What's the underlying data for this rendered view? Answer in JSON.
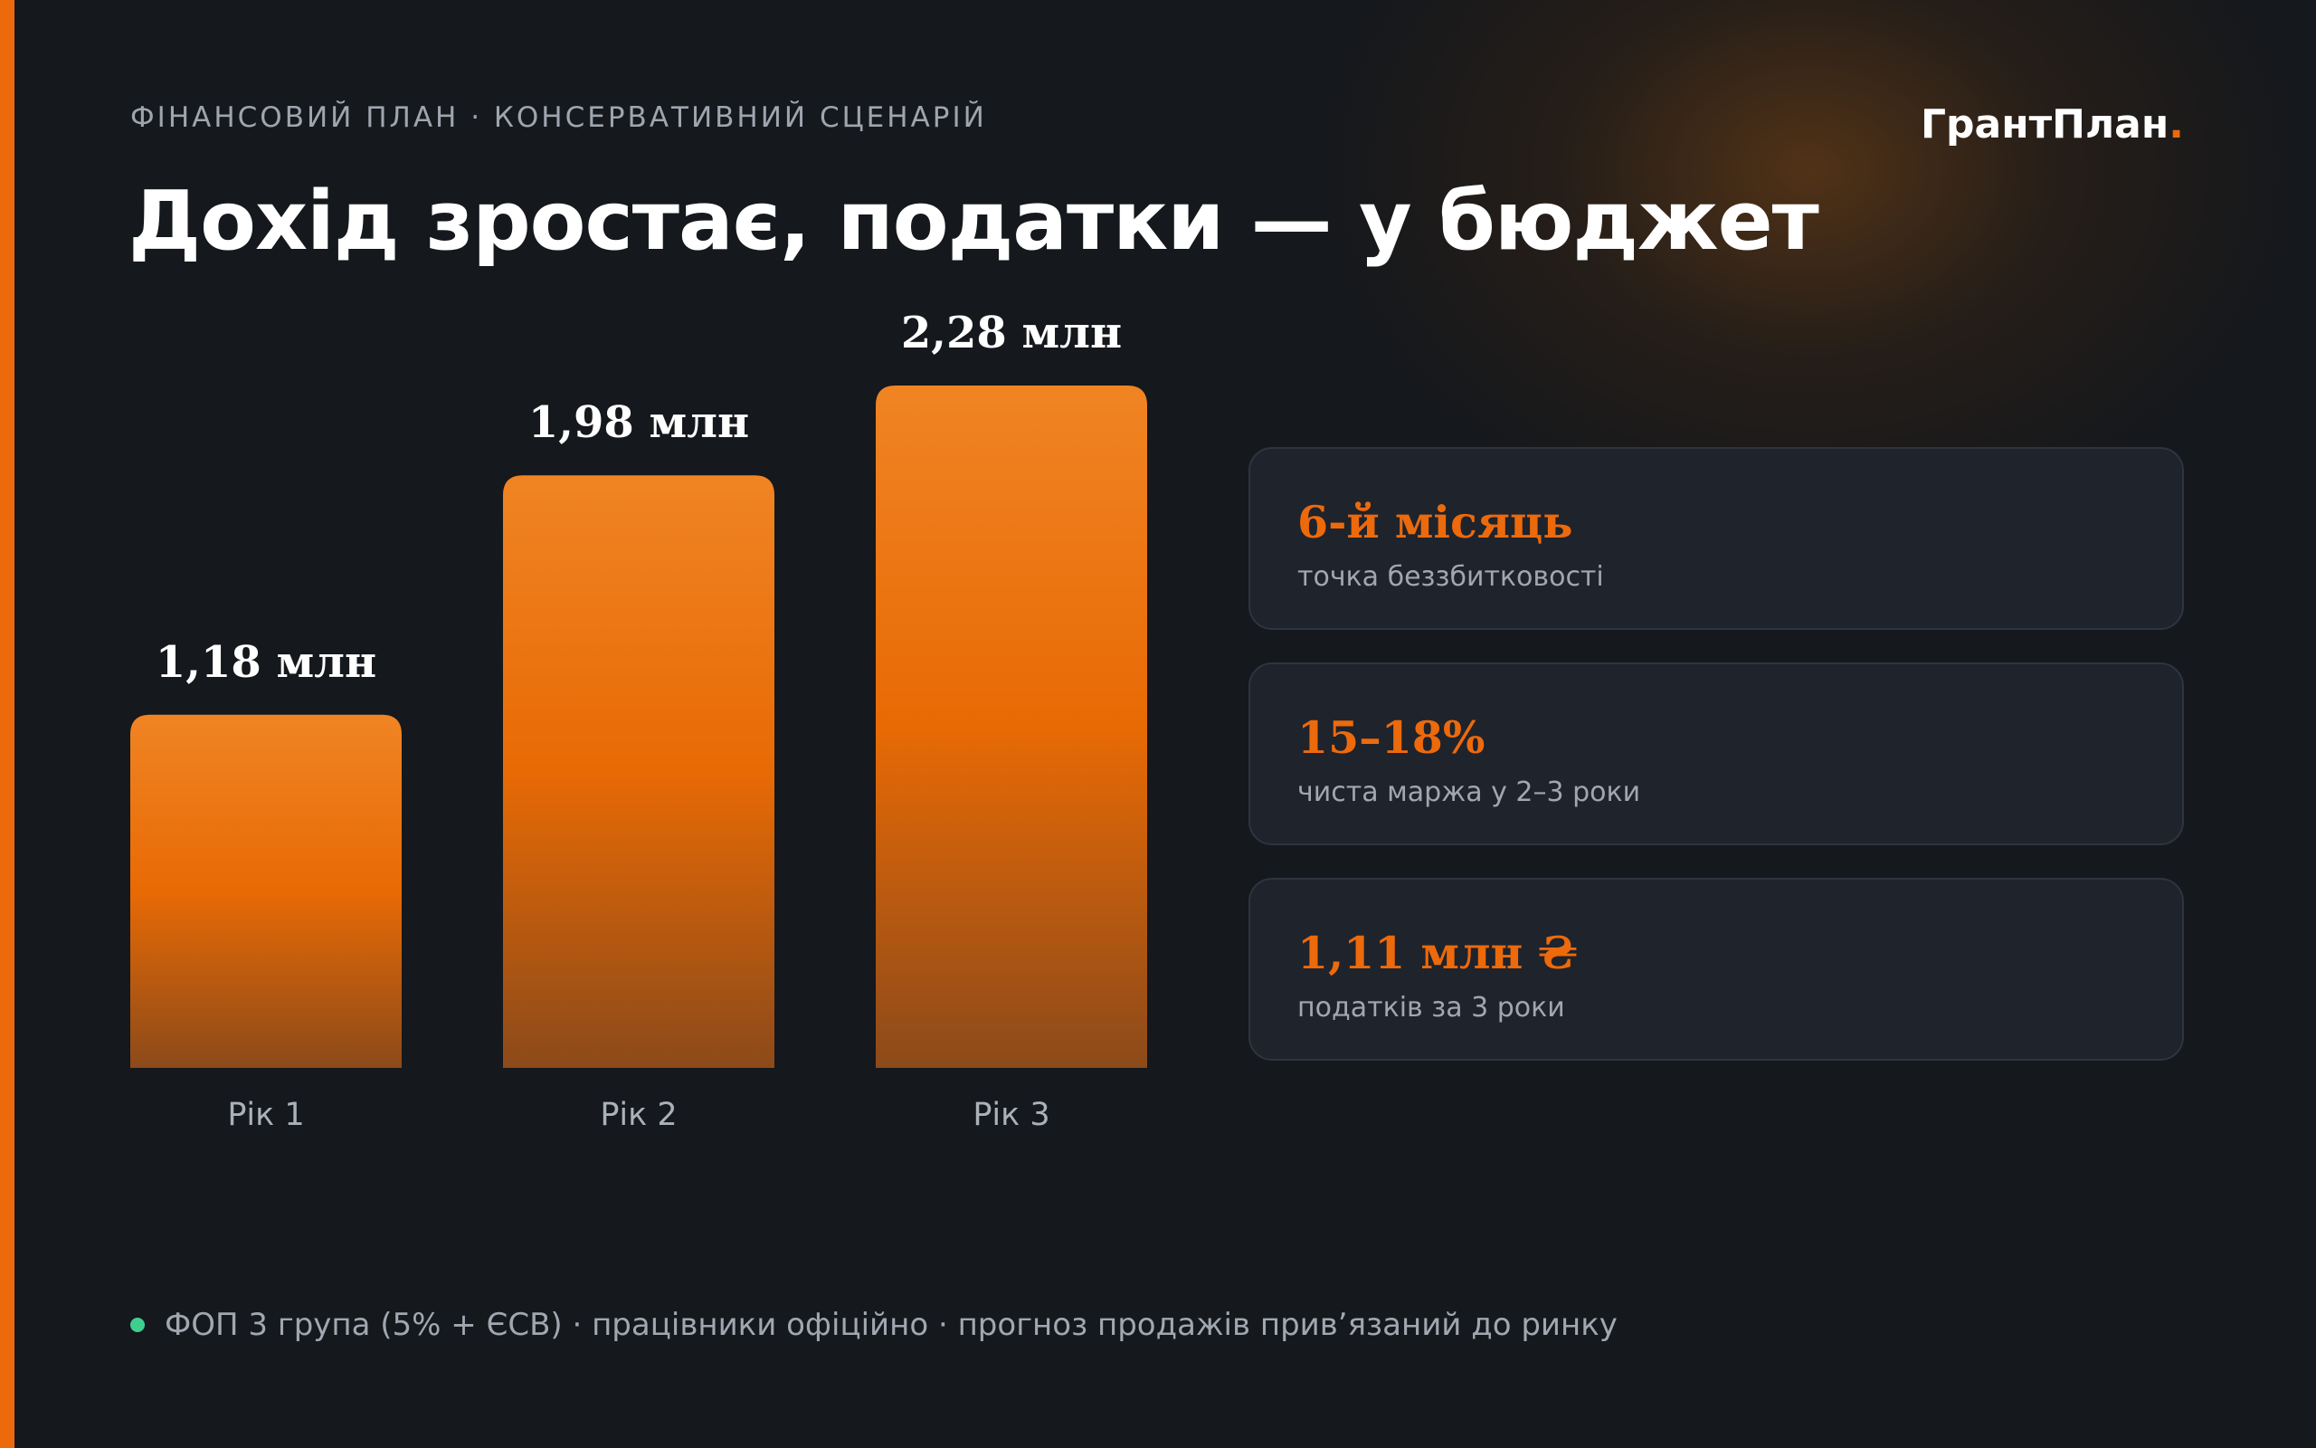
{
  "header": {
    "eyebrow": "ФІНАНСОВИЙ ПЛАН · КОНСЕРВАТИВНИЙ СЦЕНАРІЙ",
    "title": "Дохід зростає, податки — у бюджет",
    "brand_text": "ГрантПлан",
    "brand_dot": "."
  },
  "colors": {
    "accent": "#ec6a0c",
    "background": "#15181c",
    "card_background": "#1f232c",
    "bullet": "#3ecf8e"
  },
  "chart_data": {
    "type": "bar",
    "categories": [
      "Рік 1",
      "Рік 2",
      "Рік 3"
    ],
    "values": [
      1.18,
      1.98,
      2.28
    ],
    "value_labels": [
      "1,18 млн",
      "1,98 млн",
      "2,28 млн"
    ],
    "title": "",
    "xlabel": "",
    "ylabel": "",
    "ylim": [
      0,
      2.28
    ],
    "grid": false,
    "legend": "none"
  },
  "stats": [
    {
      "value": "6-й місяць",
      "label": "точка беззбитковості"
    },
    {
      "value": "15–18%",
      "label": "чиста маржа у 2–3 роки"
    },
    {
      "value": "1,11 млн ₴",
      "label": "податків за 3 роки"
    }
  ],
  "footer": {
    "note": "ФОП 3 група (5% + ЄСВ) · працівники офіційно · прогноз продажів прив’язаний до ринку"
  }
}
